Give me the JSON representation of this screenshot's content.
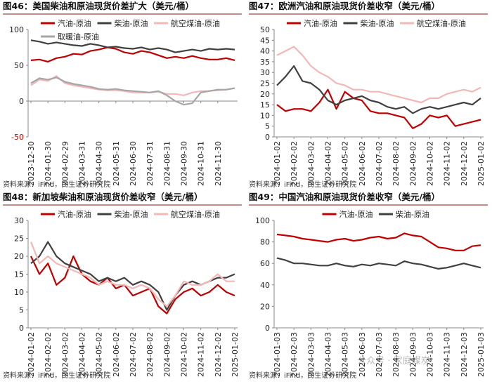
{
  "chart_data": [
    {
      "type": "line",
      "title": "图46：美国柴油和原油现货价差扩大（美元/桶）",
      "source": "资料来源：iFind，民生证券研究院",
      "categories": [
        "2023-12-30",
        null,
        "2024-01-30",
        null,
        "2024-02-29",
        null,
        "2024-03-31",
        null,
        "2024-04-30",
        null,
        "2024-05-31",
        null,
        "2024-06-30",
        null,
        "2024-07-31",
        null,
        "2024-08-31",
        null,
        "2024-09-30",
        null,
        "2024-10-31",
        null,
        "2024-11-30",
        null,
        null
      ],
      "series": [
        {
          "name": "汽油-原油",
          "color": "#c00000",
          "values": [
            57,
            58,
            55,
            60,
            62,
            66,
            65,
            70,
            72,
            75,
            73,
            68,
            66,
            70,
            68,
            64,
            60,
            62,
            60,
            63,
            60,
            58,
            58,
            60,
            57
          ]
        },
        {
          "name": "柴油-原油",
          "color": "#404040",
          "values": [
            85,
            83,
            80,
            82,
            80,
            78,
            77,
            80,
            78,
            75,
            76,
            74,
            73,
            75,
            72,
            74,
            72,
            68,
            70,
            72,
            70,
            73,
            72,
            73,
            72
          ]
        },
        {
          "name": "航空煤油-原油",
          "color": "#f2b8b8",
          "values": [
            22,
            30,
            28,
            35,
            25,
            22,
            20,
            18,
            16,
            15,
            15,
            14,
            12,
            12,
            12,
            13,
            10,
            10,
            8,
            12,
            14,
            14,
            15,
            16,
            18
          ]
        },
        {
          "name": "取暖油-原油",
          "color": "#a6a6a6",
          "values": [
            25,
            32,
            30,
            33,
            27,
            24,
            22,
            20,
            17,
            16,
            17,
            15,
            14,
            13,
            12,
            14,
            8,
            0,
            -5,
            -3,
            12,
            14,
            16,
            16,
            18
          ]
        }
      ],
      "ylim": [
        -50,
        100
      ],
      "yticks": [
        -50,
        0,
        50,
        100
      ],
      "negative_tick_color": "#c00000",
      "legend": "top-left"
    },
    {
      "type": "line",
      "title": "图47：欧洲汽油和原油现货价差收窄（美元/桶）",
      "source": "资料来源：iFind，民生证券研究院",
      "categories": [
        "2024-01-02",
        null,
        "2024-02-02",
        null,
        "2024-03-02",
        null,
        "2024-04-02",
        null,
        "2024-05-02",
        null,
        "2024-06-02",
        null,
        "2024-07-02",
        null,
        "2024-08-02",
        null,
        "2024-09-02",
        null,
        "2024-10-02",
        null,
        "2024-11-02",
        null,
        "2024-12-02",
        null,
        "2025-01-02"
      ],
      "series": [
        {
          "name": "汽油-原油",
          "color": "#c00000",
          "values": [
            15,
            12,
            13,
            13,
            12,
            16,
            22,
            13,
            21,
            18,
            17,
            12,
            11,
            11,
            10,
            9,
            4,
            6,
            10,
            9,
            10,
            5,
            6,
            7,
            8
          ]
        },
        {
          "name": "柴油-原油",
          "color": "#404040",
          "values": [
            24,
            28,
            33,
            26,
            25,
            22,
            17,
            15,
            17,
            18,
            19,
            17,
            16,
            14,
            13,
            14,
            11,
            13,
            14,
            13,
            14,
            15,
            16,
            15,
            18
          ]
        },
        {
          "name": "航空煤油-原油",
          "color": "#f2b8b8",
          "values": [
            38,
            40,
            42,
            38,
            33,
            30,
            28,
            25,
            24,
            22,
            22,
            21,
            21,
            20,
            19,
            18,
            17,
            16,
            18,
            18,
            20,
            21,
            22,
            21,
            23
          ]
        }
      ],
      "ylim": [
        0,
        50
      ],
      "yticks": [
        0,
        5,
        10,
        15,
        20,
        25,
        30,
        35,
        40,
        45,
        50
      ],
      "legend": "top-left"
    },
    {
      "type": "line",
      "title": "图48：新加坡柴油和原油现货价差收窄（美元/桶）",
      "source": "资料来源：iFind，民生证券研究院",
      "categories": [
        "2024-01-02",
        null,
        "2024-02-02",
        null,
        "2024-03-02",
        null,
        "2024-04-02",
        null,
        "2024-05-02",
        null,
        "2024-06-02",
        null,
        "2024-07-02",
        null,
        "2024-08-02",
        null,
        "2024-09-02",
        null,
        "2024-10-02",
        null,
        "2024-11-02",
        null,
        "2024-12-02",
        null,
        "2025-01-02"
      ],
      "series": [
        {
          "name": "汽油-原油",
          "color": "#c00000",
          "values": [
            20,
            15,
            18,
            12,
            14,
            20,
            15,
            13,
            12,
            14,
            11,
            12,
            9,
            10,
            11,
            6,
            4,
            8,
            10,
            11,
            9,
            10,
            12,
            10,
            9
          ]
        },
        {
          "name": "柴油-原油",
          "color": "#404040",
          "values": [
            18,
            20,
            24,
            20,
            18,
            17,
            16,
            15,
            13,
            14,
            13,
            14,
            12,
            13,
            12,
            10,
            5,
            9,
            12,
            13,
            12,
            13,
            14,
            14,
            15
          ]
        },
        {
          "name": "航空煤油-原油",
          "color": "#f2b8b8",
          "values": [
            24,
            18,
            20,
            18,
            17,
            16,
            15,
            14,
            12,
            13,
            12,
            12,
            11,
            12,
            11,
            8,
            6,
            9,
            13,
            12,
            12,
            13,
            15,
            13,
            13
          ]
        }
      ],
      "ylim": [
        0,
        30
      ],
      "yticks": [
        0,
        5,
        10,
        15,
        20,
        25,
        30
      ],
      "legend": "top-left"
    },
    {
      "type": "line",
      "title": "图49：中国汽油和原油现货价差收窄（美元/桶）",
      "source": "资料来源：iFind，民生证券研究院",
      "categories": [
        "2024-01-03",
        null,
        "2024-02-03",
        null,
        "2024-03-03",
        null,
        "2024-04-03",
        null,
        "2024-05-03",
        null,
        "2024-06-03",
        null,
        "2024-07-03",
        null,
        "2024-08-03",
        null,
        "2024-09-03",
        null,
        "2024-10-03",
        null,
        "2024-11-03",
        null,
        "2024-12-03",
        null,
        "2025-01-03"
      ],
      "series": [
        {
          "name": "汽油-原油",
          "color": "#c00000",
          "values": [
            87,
            86,
            85,
            83,
            82,
            81,
            80,
            82,
            83,
            81,
            82,
            84,
            85,
            83,
            84,
            88,
            86,
            85,
            80,
            75,
            74,
            72,
            72,
            76,
            77
          ]
        },
        {
          "name": "柴油-原油",
          "color": "#404040",
          "values": [
            65,
            63,
            60,
            60,
            59,
            58,
            58,
            60,
            58,
            57,
            59,
            58,
            60,
            59,
            58,
            62,
            60,
            59,
            57,
            55,
            56,
            58,
            60,
            58,
            56
          ]
        }
      ],
      "ylim": [
        0,
        100
      ],
      "yticks": [
        0,
        20,
        40,
        60,
        80,
        100
      ],
      "legend": "top-center"
    }
  ],
  "watermark": "公众号 · 家庭煤炭"
}
